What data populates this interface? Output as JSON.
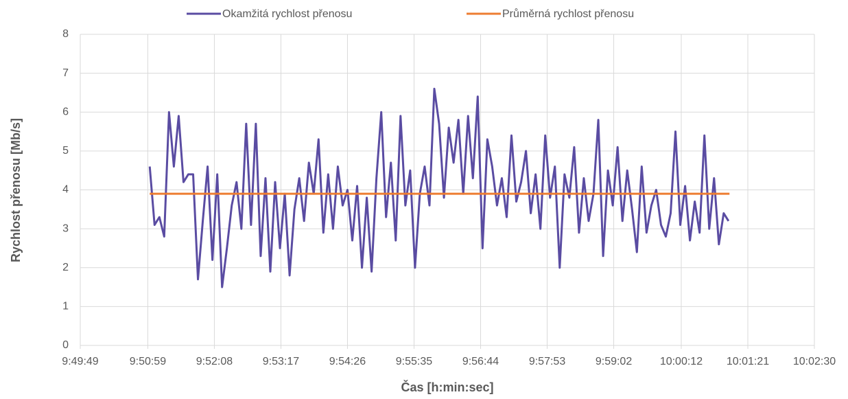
{
  "chart_data": {
    "type": "line",
    "xlabel": "Čas [h:min:sec]",
    "ylabel": "Rychlost přenosu [Mb/s]",
    "legend": "top",
    "grid": true,
    "xlim": [
      35389,
      36150
    ],
    "xticks": [
      {
        "value": 35389,
        "label": "9:49:49"
      },
      {
        "value": 35459,
        "label": "9:50:59"
      },
      {
        "value": 35528,
        "label": "9:52:08"
      },
      {
        "value": 35597,
        "label": "9:53:17"
      },
      {
        "value": 35666,
        "label": "9:54:26"
      },
      {
        "value": 35735,
        "label": "9:55:35"
      },
      {
        "value": 35804,
        "label": "9:56:44"
      },
      {
        "value": 35873,
        "label": "9:57:53"
      },
      {
        "value": 35942,
        "label": "9:59:02"
      },
      {
        "value": 36012,
        "label": "10:00:12"
      },
      {
        "value": 36081,
        "label": "10:01:21"
      },
      {
        "value": 36150,
        "label": "10:02:30"
      }
    ],
    "ylim": [
      0,
      8
    ],
    "yticks": [
      0,
      1,
      2,
      3,
      4,
      5,
      6,
      7,
      8
    ],
    "series": [
      {
        "name": "Okamžitá rychlost přenosu",
        "color": "#5a4ca2",
        "x": [
          35461,
          35466,
          35471,
          35476,
          35481,
          35486,
          35491,
          35496,
          35501,
          35506,
          35511,
          35516,
          35521,
          35526,
          35531,
          35536,
          35541,
          35546,
          35551,
          35556,
          35561,
          35566,
          35571,
          35576,
          35581,
          35586,
          35591,
          35596,
          35601,
          35606,
          35611,
          35616,
          35621,
          35626,
          35631,
          35636,
          35641,
          35646,
          35651,
          35656,
          35661,
          35666,
          35671,
          35676,
          35681,
          35686,
          35691,
          35696,
          35701,
          35706,
          35711,
          35716,
          35721,
          35726,
          35731,
          35736,
          35741,
          35746,
          35751,
          35756,
          35761,
          35766,
          35771,
          35776,
          35781,
          35786,
          35791,
          35796,
          35801,
          35806,
          35811,
          35816,
          35821,
          35826,
          35831,
          35836,
          35841,
          35846,
          35851,
          35856,
          35861,
          35866,
          35871,
          35876,
          35881,
          35886,
          35891,
          35896,
          35901,
          35906,
          35911,
          35916,
          35921,
          35926,
          35931,
          35936,
          35941,
          35946,
          35951,
          35956,
          35961,
          35966,
          35971,
          35976,
          35981,
          35986,
          35991,
          35996,
          36001,
          36006,
          36011,
          36016,
          36021,
          36026,
          36031,
          36036,
          36041,
          36046,
          36051,
          36056,
          36061
        ],
        "values": [
          4.6,
          3.1,
          3.3,
          2.8,
          6.0,
          4.6,
          5.9,
          4.2,
          4.4,
          4.4,
          1.7,
          3.2,
          4.6,
          2.2,
          4.4,
          1.5,
          2.5,
          3.6,
          4.2,
          3.0,
          5.7,
          3.1,
          5.7,
          2.3,
          4.3,
          1.9,
          4.2,
          2.5,
          3.9,
          1.8,
          3.5,
          4.3,
          3.2,
          4.7,
          3.9,
          5.3,
          2.9,
          4.4,
          3.0,
          4.6,
          3.6,
          4.0,
          2.7,
          4.1,
          2.0,
          3.8,
          1.9,
          4.3,
          6.0,
          3.3,
          4.7,
          2.7,
          5.9,
          3.6,
          4.5,
          2.0,
          3.9,
          4.6,
          3.6,
          6.6,
          5.7,
          3.8,
          5.6,
          4.7,
          5.8,
          3.9,
          5.9,
          4.3,
          6.4,
          2.5,
          5.3,
          4.6,
          3.6,
          4.3,
          3.3,
          5.4,
          3.7,
          4.2,
          5.0,
          3.4,
          4.4,
          3.0,
          5.4,
          3.8,
          4.6,
          2.0,
          4.4,
          3.8,
          5.1,
          2.9,
          4.3,
          3.2,
          3.9,
          5.8,
          2.3,
          4.5,
          3.6,
          5.1,
          3.2,
          4.5,
          3.5,
          2.4,
          4.6,
          2.9,
          3.6,
          4.0,
          3.1,
          2.8,
          3.4,
          5.5,
          3.1,
          4.1,
          2.7,
          3.7,
          2.9,
          5.4,
          3.0,
          4.3,
          2.6,
          3.4,
          3.2
        ]
      },
      {
        "name": "Průměrná rychlost přenosu",
        "color": "#ed7d31",
        "x": [
          35461,
          36062
        ],
        "values": [
          3.9,
          3.9
        ]
      }
    ]
  }
}
